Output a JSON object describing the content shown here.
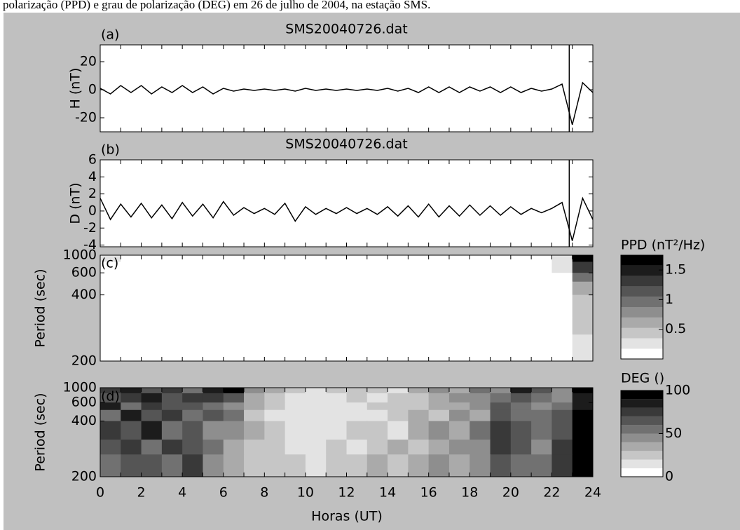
{
  "caption": "polarização (PPD) e grau de polarização (DEG) em 26 de julho de 2004, na estação SMS.",
  "time_axis": {
    "xlim": [
      0,
      24
    ],
    "xticks": [
      0,
      2,
      4,
      6,
      8,
      10,
      12,
      14,
      16,
      18,
      20,
      22,
      24
    ],
    "xminorticks": [
      1,
      3,
      5,
      7,
      9,
      11,
      13,
      15,
      17,
      19,
      21,
      23
    ],
    "xlabel": "Horas (UT)"
  },
  "chart_data": [
    {
      "type": "line",
      "label": "(a)",
      "title": "SMS20040726.dat",
      "ylabel": "H (nT)",
      "color": "#000000",
      "marker_x": 22.85,
      "ylim": [
        -30,
        32
      ],
      "yticks": [
        -20,
        0,
        20
      ],
      "x": [
        0,
        0.5,
        1,
        1.5,
        2,
        2.5,
        3,
        3.5,
        4,
        4.5,
        5,
        5.5,
        6,
        6.5,
        7,
        7.5,
        8,
        8.5,
        9,
        9.5,
        10,
        10.5,
        11,
        11.5,
        12,
        12.5,
        13,
        13.5,
        14,
        14.5,
        15,
        15.5,
        16,
        16.5,
        17,
        17.5,
        18,
        18.5,
        19,
        19.5,
        20,
        20.5,
        21,
        21.5,
        22,
        22.5,
        23,
        23.5,
        24
      ],
      "values": [
        1,
        -3,
        3,
        -2,
        3,
        -3,
        2,
        -2,
        3,
        -2,
        2,
        -3,
        1,
        -1,
        0.5,
        -0.5,
        0.5,
        -0.5,
        0.5,
        -1,
        1,
        -0.5,
        0.5,
        -0.5,
        0.5,
        -0.5,
        0.5,
        -0.5,
        1,
        -1,
        1,
        -2,
        2,
        -2,
        2,
        -2,
        2,
        -1,
        2,
        -2,
        2,
        -2,
        1,
        -1,
        0.5,
        4,
        -25,
        5,
        -2
      ]
    },
    {
      "type": "line",
      "label": "(b)",
      "title": "SMS20040726.dat",
      "ylabel": "D (nT)",
      "color": "#000000",
      "marker_x": 22.85,
      "ylim": [
        -4.2,
        6
      ],
      "yticks": [
        -4,
        -2,
        0,
        2,
        4,
        6
      ],
      "x": [
        0,
        0.5,
        1,
        1.5,
        2,
        2.5,
        3,
        3.5,
        4,
        4.5,
        5,
        5.5,
        6,
        6.5,
        7,
        7.5,
        8,
        8.5,
        9,
        9.5,
        10,
        10.5,
        11,
        11.5,
        12,
        12.5,
        13,
        13.5,
        14,
        14.5,
        15,
        15.5,
        16,
        16.5,
        17,
        17.5,
        18,
        18.5,
        19,
        19.5,
        20,
        20.5,
        21,
        21.5,
        22,
        22.5,
        23,
        23.5,
        24
      ],
      "values": [
        1.5,
        -1,
        0.8,
        -0.7,
        0.9,
        -0.8,
        0.7,
        -0.9,
        1,
        -0.6,
        0.8,
        -0.8,
        1.1,
        -0.5,
        0.4,
        -0.3,
        0.3,
        -0.4,
        0.9,
        -1.2,
        0.5,
        -0.4,
        0.3,
        -0.3,
        0.4,
        -0.3,
        0.3,
        -0.4,
        0.5,
        -0.6,
        0.6,
        -0.7,
        0.8,
        -0.7,
        0.6,
        -0.6,
        0.7,
        -0.5,
        0.6,
        -0.5,
        0.5,
        -0.4,
        0.3,
        -0.2,
        0.3,
        1,
        -3.5,
        1.5,
        -1
      ]
    },
    {
      "type": "heatmap",
      "label": "(c)",
      "ylabel": "Period (sec)",
      "yscale": "reciprocal",
      "ylim": [
        200,
        1000
      ],
      "yticks": [
        200,
        400,
        600,
        1000
      ],
      "x_edges": [
        0,
        1,
        2,
        3,
        4,
        5,
        6,
        7,
        8,
        9,
        10,
        11,
        12,
        13,
        14,
        15,
        16,
        17,
        18,
        19,
        20,
        21,
        22,
        23,
        24
      ],
      "y_edges": [
        1000,
        800,
        600,
        500,
        400,
        300,
        250,
        200
      ],
      "z": [
        [
          0.2,
          0.15,
          0.1,
          0.05,
          0.05,
          0.05,
          0.05,
          0.05,
          0.05,
          0.05,
          0.05,
          0.05,
          0.05,
          0.05,
          0.05,
          0.05,
          0.05,
          0.05,
          0.1,
          0.05,
          0.05,
          0.1,
          0.3,
          1.7
        ],
        [
          0.15,
          0.1,
          0.05,
          0.05,
          0.05,
          0.05,
          0.05,
          0.05,
          0.05,
          0.05,
          0.05,
          0.05,
          0.05,
          0.05,
          0.05,
          0.05,
          0.05,
          0.05,
          0.05,
          0.05,
          0.05,
          0.05,
          0.2,
          1.3
        ],
        [
          0.05,
          0.05,
          0.05,
          0.05,
          0.05,
          0.05,
          0.05,
          0.05,
          0.05,
          0.05,
          0.05,
          0.05,
          0.05,
          0.05,
          0.05,
          0.05,
          0.05,
          0.05,
          0.05,
          0.05,
          0.05,
          0.05,
          0.15,
          0.9
        ],
        [
          0.05,
          0.05,
          0.05,
          0.05,
          0.05,
          0.05,
          0.05,
          0.05,
          0.05,
          0.05,
          0.05,
          0.05,
          0.05,
          0.05,
          0.05,
          0.05,
          0.05,
          0.05,
          0.05,
          0.05,
          0.05,
          0.05,
          0.1,
          0.7
        ],
        [
          0.05,
          0.05,
          0.05,
          0.05,
          0.05,
          0.05,
          0.05,
          0.05,
          0.05,
          0.05,
          0.05,
          0.05,
          0.05,
          0.05,
          0.05,
          0.05,
          0.05,
          0.05,
          0.05,
          0.05,
          0.05,
          0.05,
          0.1,
          0.5
        ],
        [
          0.05,
          0.05,
          0.05,
          0.05,
          0.05,
          0.05,
          0.05,
          0.05,
          0.05,
          0.05,
          0.05,
          0.05,
          0.05,
          0.05,
          0.05,
          0.05,
          0.05,
          0.05,
          0.05,
          0.05,
          0.05,
          0.05,
          0.05,
          0.4
        ],
        [
          0.05,
          0.05,
          0.05,
          0.05,
          0.05,
          0.05,
          0.05,
          0.05,
          0.05,
          0.05,
          0.05,
          0.05,
          0.05,
          0.05,
          0.05,
          0.05,
          0.05,
          0.05,
          0.05,
          0.05,
          0.05,
          0.05,
          0.05,
          0.3
        ]
      ],
      "colorbar": {
        "label": "PPD (nT²/Hz)",
        "clim": [
          0,
          1.75
        ],
        "levels": 10,
        "ticks": [
          0.5,
          1,
          1.5
        ]
      }
    },
    {
      "type": "heatmap",
      "label": "(d)",
      "ylabel": "Period (sec)",
      "yscale": "reciprocal",
      "ylim": [
        200,
        1000
      ],
      "yticks": [
        200,
        400,
        600,
        1000
      ],
      "x_edges": [
        0,
        1,
        2,
        3,
        4,
        5,
        6,
        7,
        8,
        9,
        10,
        11,
        12,
        13,
        14,
        15,
        16,
        17,
        18,
        19,
        20,
        21,
        22,
        23,
        24
      ],
      "y_edges": [
        1000,
        800,
        600,
        500,
        400,
        300,
        250,
        200
      ],
      "z": [
        [
          70,
          85,
          60,
          75,
          55,
          80,
          90,
          40,
          30,
          20,
          15,
          20,
          25,
          20,
          15,
          30,
          40,
          35,
          50,
          45,
          80,
          60,
          40,
          90
        ],
        [
          60,
          70,
          80,
          65,
          70,
          75,
          60,
          35,
          25,
          15,
          10,
          15,
          20,
          15,
          20,
          25,
          35,
          40,
          45,
          55,
          60,
          55,
          45,
          85
        ],
        [
          80,
          55,
          70,
          60,
          65,
          50,
          45,
          30,
          20,
          10,
          10,
          15,
          10,
          20,
          25,
          20,
          30,
          35,
          40,
          60,
          50,
          45,
          50,
          80
        ],
        [
          50,
          85,
          65,
          70,
          55,
          60,
          50,
          25,
          15,
          15,
          10,
          10,
          15,
          10,
          20,
          30,
          25,
          40,
          35,
          65,
          55,
          50,
          60,
          90
        ],
        [
          75,
          60,
          80,
          55,
          60,
          45,
          40,
          30,
          20,
          10,
          15,
          10,
          20,
          25,
          15,
          35,
          45,
          30,
          50,
          70,
          60,
          55,
          65,
          95
        ],
        [
          65,
          70,
          55,
          75,
          65,
          50,
          35,
          25,
          20,
          15,
          10,
          20,
          15,
          20,
          30,
          25,
          35,
          45,
          40,
          75,
          65,
          45,
          70,
          90
        ],
        [
          55,
          65,
          60,
          50,
          70,
          45,
          30,
          20,
          25,
          20,
          15,
          25,
          20,
          30,
          20,
          30,
          40,
          35,
          45,
          60,
          55,
          50,
          75,
          100
        ]
      ],
      "colorbar": {
        "label": "DEG ()",
        "clim": [
          0,
          100
        ],
        "levels": 10,
        "ticks": [
          0,
          50,
          100
        ]
      }
    }
  ]
}
